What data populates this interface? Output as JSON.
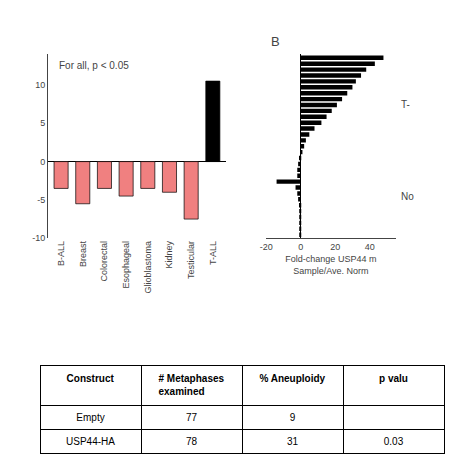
{
  "chart_data": [
    {
      "type": "bar",
      "categories": [
        "B-ALL",
        "Breast",
        "Colorectal",
        "Esophageal",
        "Glioblastoma",
        "Kidney",
        "Testicular",
        "T-ALL"
      ],
      "values": [
        -3.5,
        -5.5,
        -3.5,
        -4.5,
        -3.5,
        -4.0,
        -7.5,
        10.5
      ],
      "colors": [
        "#F08080",
        "#F08080",
        "#F08080",
        "#F08080",
        "#F08080",
        "#F08080",
        "#F08080",
        "#000000"
      ],
      "ylim": [
        -10,
        14
      ],
      "yticks": [
        -10,
        -5,
        0,
        5,
        10
      ],
      "annotations": [
        "For all, p < 0.05"
      ],
      "grid": false
    },
    {
      "type": "bar",
      "orientation": "horizontal",
      "title": "B",
      "x_label": "Fold-change USP44 m\nSample/Ave. Norm",
      "categories": [
        null,
        null,
        null,
        null,
        null,
        null,
        null,
        null,
        null,
        null,
        null,
        null,
        null,
        null,
        null,
        null,
        null,
        null,
        null,
        null,
        null,
        null,
        null,
        null,
        null,
        null,
        null,
        null,
        null,
        null,
        null
      ],
      "values": [
        48,
        43,
        38,
        35,
        32,
        30,
        27,
        24,
        21,
        18,
        15,
        12,
        8,
        5,
        3,
        2,
        1,
        -1,
        -1.5,
        -2,
        -2,
        -14,
        -3,
        -2,
        -1.5,
        -1,
        -0.5,
        -0.5,
        -0.5,
        -0.5,
        -0.5
      ],
      "color": "#000000",
      "xlim": [
        -20,
        55
      ],
      "xticks": [
        -20,
        0,
        20,
        40
      ],
      "annotations": [
        "T-",
        "No"
      ],
      "tick_labels": "x",
      "grid": false
    },
    {
      "type": "table",
      "columns": [
        "Construct",
        "# Metaphases\nexamined",
        "% Aneuploidy",
        "p valu"
      ],
      "rows": [
        [
          "Empty",
          "77",
          "9",
          ""
        ],
        [
          "USP44-HA",
          "78",
          "31",
          "0.03"
        ]
      ]
    }
  ]
}
